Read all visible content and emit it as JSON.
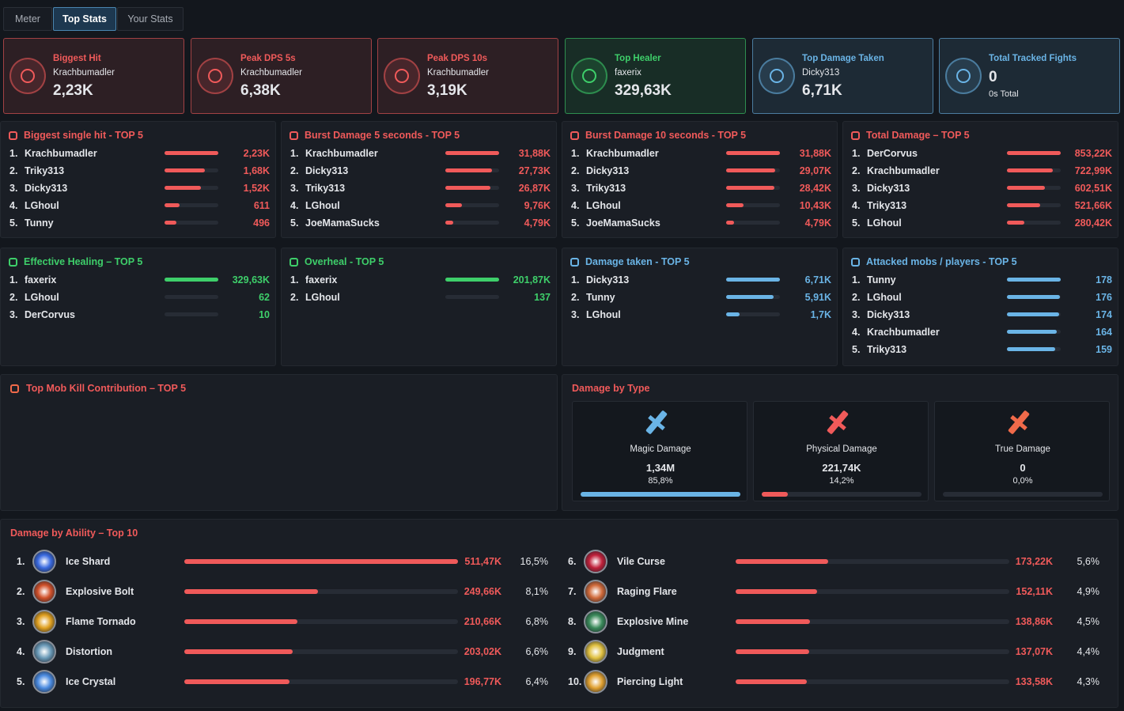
{
  "tabs": [
    "Meter",
    "Top Stats",
    "Your Stats"
  ],
  "active_tab": "Top Stats",
  "summary_cards": [
    {
      "title": "Biggest Hit",
      "name": "Krachbumadler",
      "value": "2,23K",
      "color": "#f05a5a"
    },
    {
      "title": "Peak DPS 5s",
      "name": "Krachbumadler",
      "value": "6,38K",
      "color": "#f05a5a"
    },
    {
      "title": "Peak DPS 10s",
      "name": "Krachbumadler",
      "value": "3,19K",
      "color": "#f05a5a"
    },
    {
      "title": "Top Healer",
      "name": "faxerix",
      "value": "329,63K",
      "color": "#3ecf6a"
    },
    {
      "title": "Top Damage Taken",
      "name": "Dicky313",
      "value": "6,71K",
      "color": "#6ab4e6"
    },
    {
      "title": "Total Tracked Fights",
      "value": "0",
      "subtitle": "0s Total",
      "color": "#6ab4e6"
    }
  ],
  "panels": [
    {
      "title": "Biggest single hit - TOP 5",
      "color": "#f05a5a",
      "rows": [
        {
          "rank": "1.",
          "name": "Krachbumadler",
          "value": 2230,
          "value_label": "2,23K"
        },
        {
          "rank": "2.",
          "name": "Triky313",
          "value": 1680,
          "value_label": "1,68K"
        },
        {
          "rank": "3.",
          "name": "Dicky313",
          "value": 1520,
          "value_label": "1,52K"
        },
        {
          "rank": "4.",
          "name": "LGhoul",
          "value": 611
        },
        {
          "rank": "5.",
          "name": "Tunny",
          "value": 496
        }
      ]
    },
    {
      "title": "Burst Damage 5 seconds - TOP 5",
      "color": "#f05a5a",
      "rows": [
        {
          "rank": "1.",
          "name": "Krachbumadler",
          "value": 31880,
          "value_label": "31,88K"
        },
        {
          "rank": "2.",
          "name": "Dicky313",
          "value": 27730,
          "value_label": "27,73K"
        },
        {
          "rank": "3.",
          "name": "Triky313",
          "value": 26870,
          "value_label": "26,87K"
        },
        {
          "rank": "4.",
          "name": "LGhoul",
          "value": 9760,
          "value_label": "9,76K"
        },
        {
          "rank": "5.",
          "name": "JoeMamaSucks",
          "value": 4790,
          "value_label": "4,79K"
        }
      ]
    },
    {
      "title": "Burst Damage 10 seconds - TOP 5",
      "color": "#f05a5a",
      "rows": [
        {
          "rank": "1.",
          "name": "Krachbumadler",
          "value": 31880,
          "value_label": "31,88K"
        },
        {
          "rank": "2.",
          "name": "Dicky313",
          "value": 29070,
          "value_label": "29,07K"
        },
        {
          "rank": "3.",
          "name": "Triky313",
          "value": 28420,
          "value_label": "28,42K"
        },
        {
          "rank": "4.",
          "name": "LGhoul",
          "value": 10430,
          "value_label": "10,43K"
        },
        {
          "rank": "5.",
          "name": "JoeMamaSucks",
          "value": 4790,
          "value_label": "4,79K"
        }
      ]
    },
    {
      "title": "Total Damage – TOP 5",
      "color": "#f05a5a",
      "rows": [
        {
          "rank": "1.",
          "name": "DerCorvus",
          "value": 853220,
          "value_label": "853,22K"
        },
        {
          "rank": "2.",
          "name": "Krachbumadler",
          "value": 722990,
          "value_label": "722,99K"
        },
        {
          "rank": "3.",
          "name": "Dicky313",
          "value": 602510,
          "value_label": "602,51K"
        },
        {
          "rank": "4.",
          "name": "Triky313",
          "value": 521660,
          "value_label": "521,66K"
        },
        {
          "rank": "5.",
          "name": "LGhoul",
          "value": 280420,
          "value_label": "280,42K"
        }
      ]
    },
    {
      "title": "Effective Healing – TOP 5",
      "color": "#3ecf6a",
      "rows": [
        {
          "rank": "1.",
          "name": "faxerix",
          "value": 329630,
          "value_label": "329,63K"
        },
        {
          "rank": "2.",
          "name": "LGhoul",
          "value": 62
        },
        {
          "rank": "3.",
          "name": "DerCorvus",
          "value": 10
        }
      ]
    },
    {
      "title": "Overheal - TOP 5",
      "color": "#3ecf6a",
      "rows": [
        {
          "rank": "1.",
          "name": "faxerix",
          "value": 201870,
          "value_label": "201,87K"
        },
        {
          "rank": "2.",
          "name": "LGhoul",
          "value": 137
        }
      ]
    },
    {
      "title": "Damage taken - TOP 5",
      "color": "#6ab4e6",
      "rows": [
        {
          "rank": "1.",
          "name": "Dicky313",
          "value": 6710,
          "value_label": "6,71K"
        },
        {
          "rank": "2.",
          "name": "Tunny",
          "value": 5910,
          "value_label": "5,91K"
        },
        {
          "rank": "3.",
          "name": "LGhoul",
          "value": 1700,
          "value_label": "1,7K"
        }
      ]
    },
    {
      "title": "Attacked mobs / players - TOP 5",
      "color": "#6ab4e6",
      "rows": [
        {
          "rank": "1.",
          "name": "Tunny",
          "value": 178
        },
        {
          "rank": "2.",
          "name": "LGhoul",
          "value": 176
        },
        {
          "rank": "3.",
          "name": "Dicky313",
          "value": 174
        },
        {
          "rank": "4.",
          "name": "Krachbumadler",
          "value": 164
        },
        {
          "rank": "5.",
          "name": "Triky313",
          "value": 159
        }
      ]
    }
  ],
  "mob_kill_panel": {
    "title": "Top Mob Kill Contribution – TOP 5"
  },
  "damage_by_type": {
    "title": "Damage by Type",
    "types": [
      {
        "name": "Magic Damage",
        "value": 1340000,
        "value_label": "1,34M",
        "percent": "85,8%",
        "color": "#6ab4e6"
      },
      {
        "name": "Physical Damage",
        "value": 221740,
        "value_label": "221,74K",
        "percent": "14,2%",
        "color": "#f05a5a"
      },
      {
        "name": "True Damage",
        "value": 0,
        "percent": "0,0%",
        "color": "#f06a4a"
      }
    ]
  },
  "damage_by_ability": {
    "title": "Damage by Ability – Top 10",
    "rows": [
      {
        "rank": "1.",
        "name": "Ice Shard",
        "value": 511470,
        "value_label": "511,47K",
        "percent": "16,5%"
      },
      {
        "rank": "2.",
        "name": "Explosive Bolt",
        "value": 249660,
        "value_label": "249,66K",
        "percent": "8,1%"
      },
      {
        "rank": "3.",
        "name": "Flame Tornado",
        "value": 210660,
        "value_label": "210,66K",
        "percent": "6,8%"
      },
      {
        "rank": "4.",
        "name": "Distortion",
        "value": 203020,
        "value_label": "203,02K",
        "percent": "6,6%"
      },
      {
        "rank": "5.",
        "name": "Ice Crystal",
        "value": 196770,
        "value_label": "196,77K",
        "percent": "6,4%"
      },
      {
        "rank": "6.",
        "name": "Vile Curse",
        "value": 173220,
        "value_label": "173,22K",
        "percent": "5,6%"
      },
      {
        "rank": "7.",
        "name": "Raging Flare",
        "value": 152110,
        "value_label": "152,11K",
        "percent": "4,9%"
      },
      {
        "rank": "8.",
        "name": "Explosive Mine",
        "value": 138860,
        "value_label": "138,86K",
        "percent": "4,5%"
      },
      {
        "rank": "9.",
        "name": "Judgment",
        "value": 137070,
        "value_label": "137,07K",
        "percent": "4,4%"
      },
      {
        "rank": "10.",
        "name": "Piercing Light",
        "value": 133580,
        "value_label": "133,58K",
        "percent": "4,3%"
      }
    ]
  }
}
